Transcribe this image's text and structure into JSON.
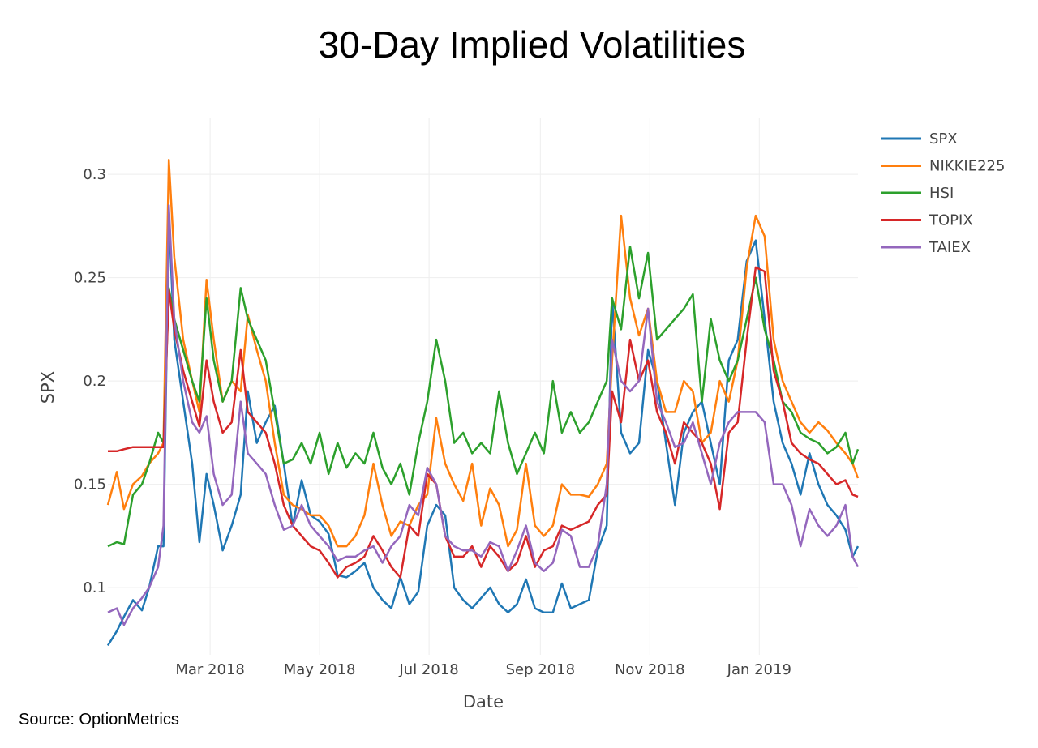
{
  "chart_data": {
    "type": "line",
    "title": "30-Day Implied Volatilities",
    "xlabel": "Date",
    "ylabel": "SPX",
    "source": "Source: OptionMetrics",
    "xlim": [
      "2018-01-03",
      "2019-02-25"
    ],
    "ylim": [
      0.0675,
      0.3275
    ],
    "yticks": [
      0.1,
      0.15,
      0.2,
      0.25,
      0.3
    ],
    "ytick_labels": [
      "0.1",
      "0.15",
      "0.2",
      "0.25",
      "0.3"
    ],
    "xticks": [
      "2018-03-01",
      "2018-05-01",
      "2018-07-01",
      "2018-09-01",
      "2018-11-01",
      "2019-01-01"
    ],
    "xtick_labels": [
      "Mar 2018",
      "May 2018",
      "Jul 2018",
      "Sep 2018",
      "Nov 2018",
      "Jan 2019"
    ],
    "grid": true,
    "legend_position": "top-right",
    "dates": [
      "2018-01-03",
      "2018-01-08",
      "2018-01-12",
      "2018-01-17",
      "2018-01-22",
      "2018-01-26",
      "2018-01-31",
      "2018-02-03",
      "2018-02-06",
      "2018-02-09",
      "2018-02-14",
      "2018-02-19",
      "2018-02-23",
      "2018-02-27",
      "2018-03-03",
      "2018-03-08",
      "2018-03-13",
      "2018-03-18",
      "2018-03-22",
      "2018-03-27",
      "2018-04-01",
      "2018-04-06",
      "2018-04-11",
      "2018-04-16",
      "2018-04-21",
      "2018-04-26",
      "2018-05-01",
      "2018-05-06",
      "2018-05-11",
      "2018-05-16",
      "2018-05-21",
      "2018-05-26",
      "2018-05-31",
      "2018-06-05",
      "2018-06-10",
      "2018-06-15",
      "2018-06-20",
      "2018-06-25",
      "2018-06-30",
      "2018-07-05",
      "2018-07-10",
      "2018-07-15",
      "2018-07-20",
      "2018-07-25",
      "2018-07-30",
      "2018-08-04",
      "2018-08-09",
      "2018-08-14",
      "2018-08-19",
      "2018-08-24",
      "2018-08-29",
      "2018-09-03",
      "2018-09-08",
      "2018-09-13",
      "2018-09-18",
      "2018-09-23",
      "2018-09-28",
      "2018-10-03",
      "2018-10-08",
      "2018-10-11",
      "2018-10-16",
      "2018-10-21",
      "2018-10-26",
      "2018-10-31",
      "2018-11-05",
      "2018-11-10",
      "2018-11-15",
      "2018-11-20",
      "2018-11-25",
      "2018-11-30",
      "2018-12-05",
      "2018-12-10",
      "2018-12-15",
      "2018-12-20",
      "2018-12-25",
      "2018-12-30",
      "2019-01-04",
      "2019-01-09",
      "2019-01-14",
      "2019-01-19",
      "2019-01-24",
      "2019-01-29",
      "2019-02-03",
      "2019-02-08",
      "2019-02-13",
      "2019-02-18",
      "2019-02-22",
      "2019-02-25"
    ],
    "series": [
      {
        "name": "SPX",
        "color": "#1f77b4",
        "values": [
          0.072,
          0.079,
          0.086,
          0.094,
          0.089,
          0.1,
          0.12,
          0.12,
          0.28,
          0.22,
          0.19,
          0.16,
          0.122,
          0.155,
          0.14,
          0.118,
          0.13,
          0.145,
          0.195,
          0.17,
          0.18,
          0.188,
          0.16,
          0.13,
          0.152,
          0.135,
          0.132,
          0.126,
          0.106,
          0.105,
          0.108,
          0.112,
          0.1,
          0.094,
          0.09,
          0.105,
          0.092,
          0.098,
          0.13,
          0.14,
          0.135,
          0.1,
          0.094,
          0.09,
          0.095,
          0.1,
          0.092,
          0.088,
          0.092,
          0.104,
          0.09,
          0.088,
          0.088,
          0.102,
          0.09,
          0.092,
          0.094,
          0.118,
          0.13,
          0.24,
          0.175,
          0.165,
          0.17,
          0.215,
          0.2,
          0.17,
          0.14,
          0.175,
          0.185,
          0.19,
          0.17,
          0.15,
          0.21,
          0.22,
          0.258,
          0.268,
          0.23,
          0.19,
          0.17,
          0.16,
          0.145,
          0.165,
          0.15,
          0.14,
          0.135,
          0.128,
          0.115,
          0.12
        ]
      },
      {
        "name": "NIKKIE225",
        "color": "#ff7f0e",
        "values": [
          0.14,
          0.156,
          0.138,
          0.15,
          0.154,
          0.16,
          0.165,
          0.17,
          0.307,
          0.26,
          0.22,
          0.2,
          0.185,
          0.249,
          0.22,
          0.19,
          0.2,
          0.195,
          0.232,
          0.215,
          0.2,
          0.17,
          0.145,
          0.14,
          0.138,
          0.135,
          0.135,
          0.13,
          0.12,
          0.12,
          0.125,
          0.135,
          0.16,
          0.14,
          0.125,
          0.132,
          0.13,
          0.14,
          0.145,
          0.182,
          0.16,
          0.15,
          0.142,
          0.16,
          0.13,
          0.148,
          0.14,
          0.12,
          0.128,
          0.16,
          0.13,
          0.125,
          0.13,
          0.15,
          0.145,
          0.145,
          0.144,
          0.15,
          0.16,
          0.21,
          0.28,
          0.24,
          0.222,
          0.235,
          0.2,
          0.185,
          0.185,
          0.2,
          0.195,
          0.17,
          0.175,
          0.2,
          0.19,
          0.21,
          0.255,
          0.28,
          0.27,
          0.22,
          0.2,
          0.19,
          0.18,
          0.175,
          0.18,
          0.176,
          0.17,
          0.165,
          0.16,
          0.153
        ]
      },
      {
        "name": "HSI",
        "color": "#2ca02c",
        "values": [
          0.12,
          0.122,
          0.121,
          0.145,
          0.15,
          0.16,
          0.175,
          0.17,
          0.245,
          0.23,
          0.215,
          0.2,
          0.19,
          0.24,
          0.21,
          0.19,
          0.2,
          0.245,
          0.23,
          0.22,
          0.21,
          0.185,
          0.16,
          0.162,
          0.17,
          0.16,
          0.175,
          0.155,
          0.17,
          0.158,
          0.165,
          0.16,
          0.175,
          0.158,
          0.15,
          0.16,
          0.145,
          0.17,
          0.19,
          0.22,
          0.2,
          0.17,
          0.175,
          0.165,
          0.17,
          0.165,
          0.195,
          0.17,
          0.155,
          0.165,
          0.175,
          0.165,
          0.2,
          0.175,
          0.185,
          0.175,
          0.18,
          0.19,
          0.2,
          0.24,
          0.225,
          0.265,
          0.24,
          0.262,
          0.22,
          0.225,
          0.23,
          0.235,
          0.242,
          0.19,
          0.23,
          0.21,
          0.2,
          0.21,
          0.23,
          0.25,
          0.225,
          0.21,
          0.19,
          0.185,
          0.175,
          0.172,
          0.17,
          0.165,
          0.168,
          0.175,
          0.16,
          0.167
        ]
      },
      {
        "name": "TOPIX",
        "color": "#d62728",
        "values": [
          0.166,
          0.166,
          0.167,
          0.168,
          0.168,
          0.168,
          0.168,
          0.168,
          0.244,
          0.225,
          0.205,
          0.19,
          0.178,
          0.21,
          0.19,
          0.175,
          0.18,
          0.215,
          0.185,
          0.18,
          0.175,
          0.16,
          0.14,
          0.13,
          0.125,
          0.12,
          0.118,
          0.112,
          0.105,
          0.11,
          0.112,
          0.115,
          0.125,
          0.118,
          0.11,
          0.105,
          0.13,
          0.125,
          0.155,
          0.15,
          0.125,
          0.115,
          0.115,
          0.12,
          0.11,
          0.12,
          0.115,
          0.108,
          0.112,
          0.125,
          0.11,
          0.118,
          0.12,
          0.13,
          0.128,
          0.13,
          0.132,
          0.14,
          0.145,
          0.195,
          0.18,
          0.22,
          0.2,
          0.21,
          0.185,
          0.175,
          0.16,
          0.18,
          0.175,
          0.17,
          0.16,
          0.138,
          0.175,
          0.18,
          0.22,
          0.255,
          0.253,
          0.205,
          0.19,
          0.17,
          0.165,
          0.162,
          0.16,
          0.155,
          0.15,
          0.152,
          0.145,
          0.144
        ]
      },
      {
        "name": "TAIEX",
        "color": "#9467bd",
        "values": [
          0.088,
          0.09,
          0.082,
          0.09,
          0.095,
          0.1,
          0.11,
          0.13,
          0.285,
          0.23,
          0.2,
          0.18,
          0.175,
          0.183,
          0.155,
          0.14,
          0.145,
          0.19,
          0.165,
          0.16,
          0.155,
          0.14,
          0.128,
          0.13,
          0.14,
          0.13,
          0.125,
          0.12,
          0.113,
          0.115,
          0.115,
          0.118,
          0.12,
          0.112,
          0.12,
          0.125,
          0.14,
          0.135,
          0.158,
          0.15,
          0.125,
          0.12,
          0.118,
          0.118,
          0.115,
          0.122,
          0.12,
          0.108,
          0.118,
          0.13,
          0.112,
          0.108,
          0.112,
          0.128,
          0.125,
          0.11,
          0.11,
          0.12,
          0.15,
          0.22,
          0.2,
          0.195,
          0.2,
          0.235,
          0.19,
          0.18,
          0.168,
          0.17,
          0.18,
          0.165,
          0.15,
          0.17,
          0.18,
          0.185,
          0.185,
          0.185,
          0.18,
          0.15,
          0.15,
          0.14,
          0.12,
          0.138,
          0.13,
          0.125,
          0.13,
          0.14,
          0.115,
          0.11
        ]
      }
    ]
  }
}
